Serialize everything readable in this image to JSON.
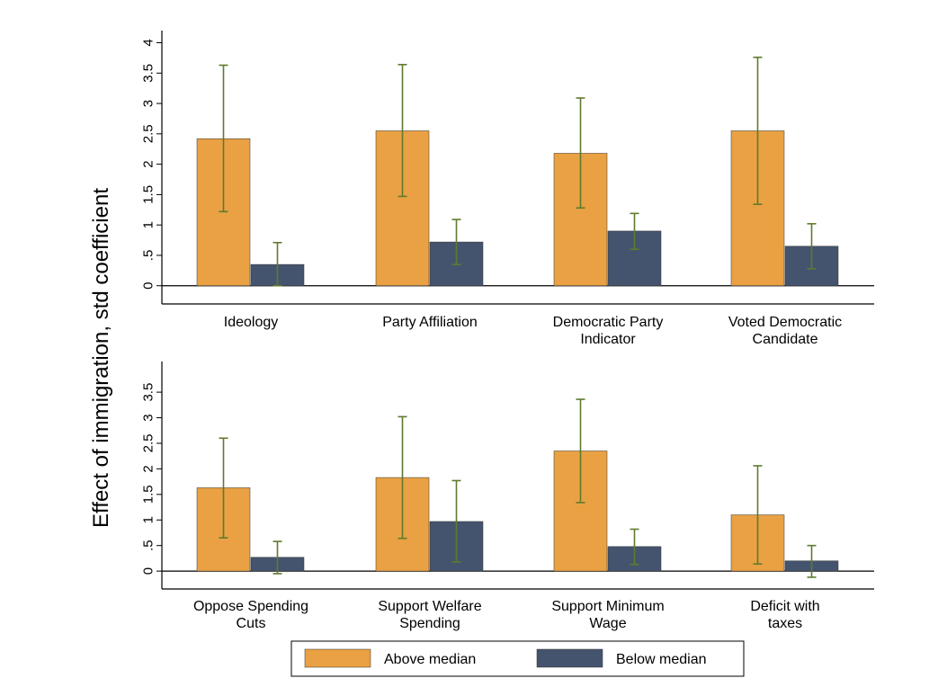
{
  "chart_data": {
    "type": "bar",
    "ylabel": "Effect of immigration, std coefficient",
    "colors": {
      "above": "#e9a143",
      "below": "#44546e",
      "error_bar": "#5e7a2e",
      "axis": "#000000"
    },
    "legend": {
      "placement": "bottom",
      "entries": [
        {
          "name": "Above median",
          "color_key": "above"
        },
        {
          "name": "Below median",
          "color_key": "below"
        }
      ]
    },
    "panels": [
      {
        "yticks": [
          0,
          0.5,
          1,
          1.5,
          2,
          2.5,
          3,
          3.5,
          4
        ],
        "ytick_labels": [
          "0",
          ".5",
          "1",
          "1.5",
          "2",
          "2.5",
          "3",
          "3.5",
          "4"
        ],
        "ylim": [
          -0.3,
          4.0
        ],
        "categories": [
          [
            "Ideology"
          ],
          [
            "Party Affiliation"
          ],
          [
            "Democratic Party",
            "Indicator"
          ],
          [
            "Voted Democratic",
            "Candidate"
          ]
        ],
        "series": [
          {
            "name": "Above median",
            "values": [
              2.42,
              2.55,
              2.18,
              2.55
            ],
            "ci_low": [
              1.22,
              1.47,
              1.28,
              1.34
            ],
            "ci_high": [
              3.63,
              3.64,
              3.09,
              3.76
            ]
          },
          {
            "name": "Below median",
            "values": [
              0.35,
              0.72,
              0.9,
              0.65
            ],
            "ci_low": [
              0.0,
              0.35,
              0.6,
              0.28
            ],
            "ci_high": [
              0.71,
              1.09,
              1.19,
              1.02
            ]
          }
        ]
      },
      {
        "yticks": [
          0,
          0.5,
          1,
          1.5,
          2,
          2.5,
          3,
          3.5
        ],
        "ytick_labels": [
          "0",
          ".5",
          "1",
          "1.5",
          "2",
          "2.5",
          "3",
          "3.5"
        ],
        "ylim": [
          -0.35,
          4.1
        ],
        "categories": [
          [
            "Oppose Spending",
            "Cuts"
          ],
          [
            "Support Welfare",
            "Spending"
          ],
          [
            "Support Minimum",
            "Wage"
          ],
          [
            "Deficit with",
            "taxes"
          ]
        ],
        "series": [
          {
            "name": "Above median",
            "values": [
              1.63,
              1.83,
              2.35,
              1.1
            ],
            "ci_low": [
              0.65,
              0.64,
              1.34,
              0.14
            ],
            "ci_high": [
              2.6,
              3.02,
              3.36,
              2.06
            ]
          },
          {
            "name": "Below median",
            "values": [
              0.27,
              0.97,
              0.48,
              0.2
            ],
            "ci_low": [
              -0.05,
              0.18,
              0.13,
              -0.12
            ],
            "ci_high": [
              0.58,
              1.77,
              0.82,
              0.5
            ]
          }
        ]
      }
    ]
  }
}
